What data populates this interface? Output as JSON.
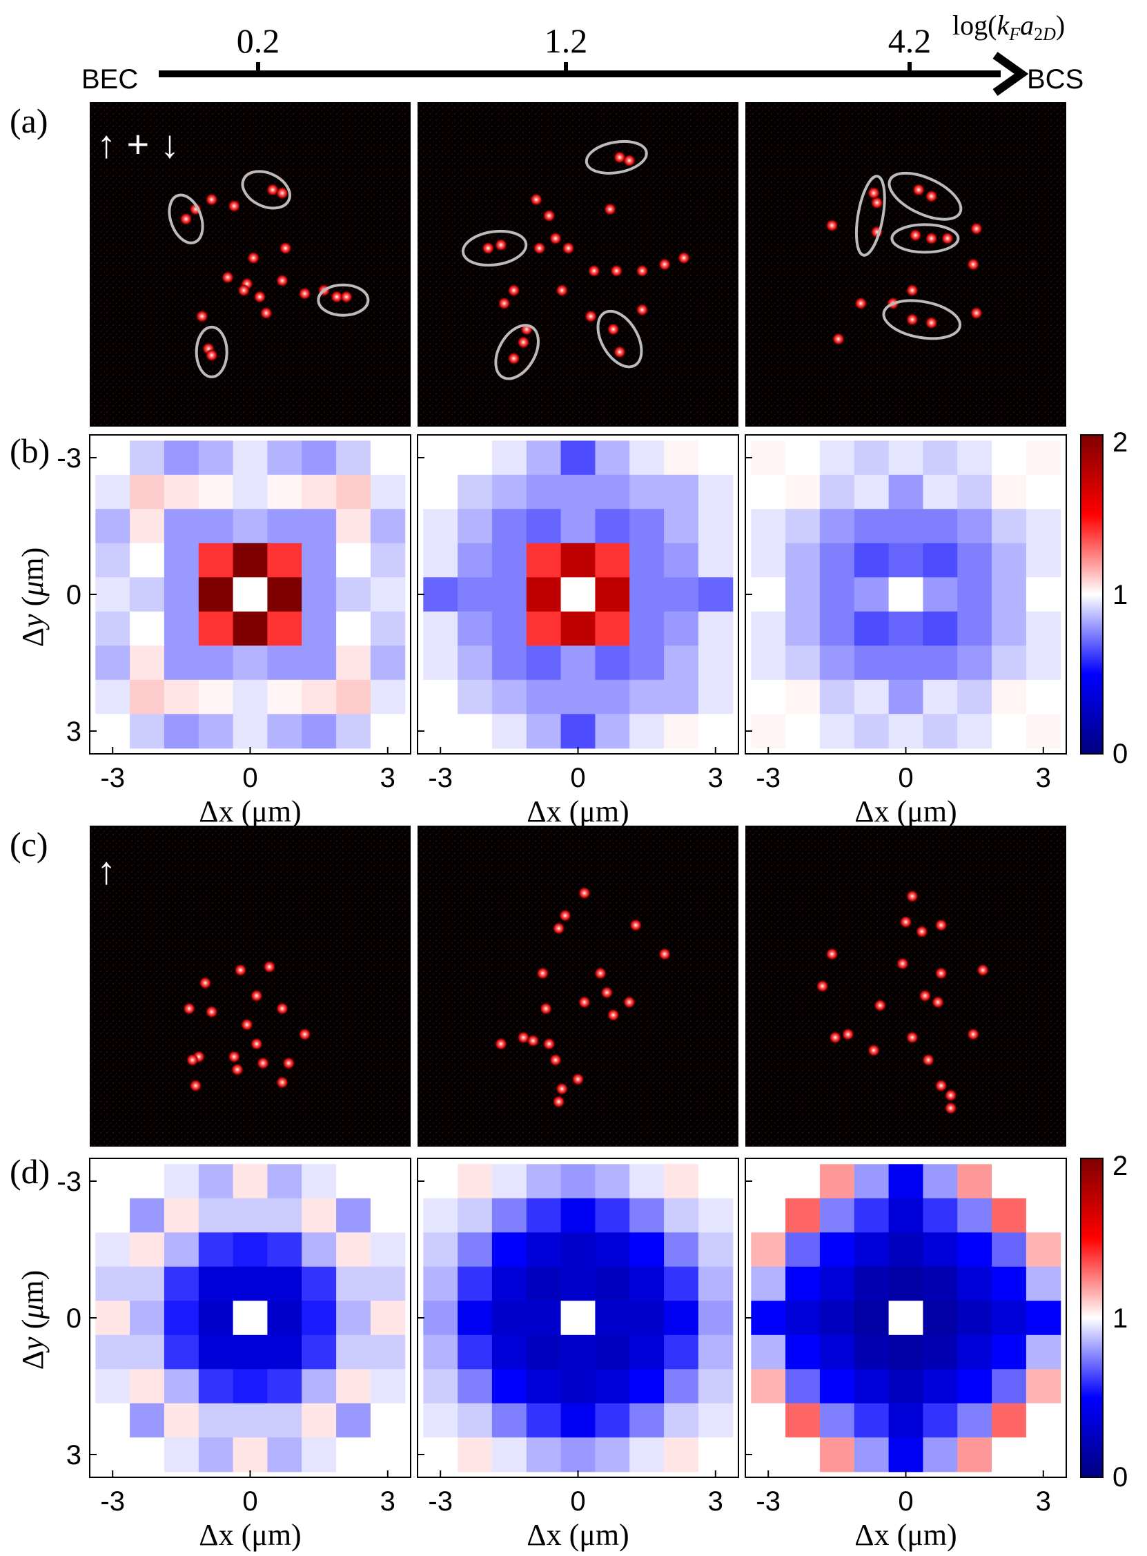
{
  "axis_top": {
    "left_label": "BEC",
    "right_label": "BCS",
    "ticks": [
      "0.2",
      "1.2",
      "4.2"
    ],
    "quantity_label": "log(kFa2D)"
  },
  "panels": {
    "a": {
      "label": "(a)",
      "symbol": "↑ + ↓"
    },
    "b": {
      "label": "(b)"
    },
    "c": {
      "label": "(c)",
      "symbol": "↑"
    },
    "d": {
      "label": "(d)"
    }
  },
  "axes_text": {
    "xlabel": "Δx (μm)",
    "ylabel": "Δy (μm)",
    "tick_neg": "-3",
    "tick_zero": "0",
    "tick_pos": "3"
  },
  "colorbar": {
    "max_label": "2",
    "mid_label": "1",
    "min_label": "0",
    "range": [
      0,
      2
    ]
  },
  "colors": {
    "low": "#00007f",
    "mid": "#ffffff",
    "high": "#7f0000",
    "image_bg": "#000000",
    "spot": "#ff2020",
    "ellipse": "#bbbbbb"
  },
  "chart_data": [
    {
      "type": "heatmap",
      "panel": "b",
      "column": 1,
      "x": [
        -3,
        -2.25,
        -1.5,
        -0.75,
        0,
        0.75,
        1.5,
        2.25,
        3
      ],
      "y": [
        3,
        2.25,
        1.5,
        0.75,
        0,
        -0.75,
        -1.5,
        -2.25,
        -3
      ],
      "zlim": [
        0,
        2
      ],
      "values": [
        [
          1.0,
          0.9,
          0.8,
          0.85,
          0.95,
          0.85,
          0.8,
          0.9,
          1.0
        ],
        [
          0.95,
          1.1,
          1.05,
          1.02,
          0.95,
          1.02,
          1.05,
          1.1,
          0.95
        ],
        [
          0.85,
          1.05,
          0.8,
          0.8,
          0.85,
          0.8,
          0.8,
          1.05,
          0.85
        ],
        [
          0.9,
          1.0,
          0.8,
          1.4,
          2.0,
          1.4,
          0.8,
          1.0,
          0.9
        ],
        [
          0.95,
          0.9,
          0.8,
          2.0,
          1.0,
          2.0,
          0.8,
          0.9,
          0.95
        ],
        [
          0.9,
          1.0,
          0.8,
          1.4,
          2.0,
          1.4,
          0.8,
          1.0,
          0.9
        ],
        [
          0.85,
          1.05,
          0.8,
          0.8,
          0.85,
          0.8,
          0.8,
          1.05,
          0.85
        ],
        [
          0.95,
          1.1,
          1.05,
          1.02,
          0.95,
          1.02,
          1.05,
          1.1,
          0.95
        ],
        [
          1.0,
          0.9,
          0.8,
          0.85,
          0.95,
          0.85,
          0.8,
          0.9,
          1.0
        ]
      ]
    },
    {
      "type": "heatmap",
      "panel": "b",
      "column": 2,
      "x": [
        -3,
        -2.25,
        -1.5,
        -0.75,
        0,
        0.75,
        1.5,
        2.25,
        3
      ],
      "y": [
        3,
        2.25,
        1.5,
        0.75,
        0,
        -0.75,
        -1.5,
        -2.25,
        -3
      ],
      "zlim": [
        0,
        2
      ],
      "values": [
        [
          1.0,
          1.0,
          0.95,
          0.85,
          0.65,
          0.85,
          0.95,
          1.02,
          1.0
        ],
        [
          1.0,
          0.9,
          0.85,
          0.8,
          0.8,
          0.8,
          0.85,
          0.85,
          0.95
        ],
        [
          0.95,
          0.85,
          0.75,
          0.7,
          0.8,
          0.7,
          0.75,
          0.85,
          0.95
        ],
        [
          0.95,
          0.8,
          0.75,
          1.4,
          1.75,
          1.4,
          0.75,
          0.8,
          0.95
        ],
        [
          0.7,
          0.75,
          0.75,
          1.75,
          1.0,
          1.75,
          0.75,
          0.75,
          0.7
        ],
        [
          0.95,
          0.8,
          0.75,
          1.4,
          1.75,
          1.4,
          0.75,
          0.8,
          0.95
        ],
        [
          0.95,
          0.85,
          0.75,
          0.7,
          0.8,
          0.7,
          0.75,
          0.85,
          0.95
        ],
        [
          1.0,
          0.9,
          0.85,
          0.8,
          0.8,
          0.8,
          0.85,
          0.85,
          0.95
        ],
        [
          1.0,
          1.0,
          0.95,
          0.85,
          0.65,
          0.85,
          0.95,
          1.02,
          1.0
        ]
      ]
    },
    {
      "type": "heatmap",
      "panel": "b",
      "column": 3,
      "x": [
        -3,
        -2.25,
        -1.5,
        -0.75,
        0,
        0.75,
        1.5,
        2.25,
        3
      ],
      "y": [
        3,
        2.25,
        1.5,
        0.75,
        0,
        -0.75,
        -1.5,
        -2.25,
        -3
      ],
      "zlim": [
        0,
        2
      ],
      "values": [
        [
          1.02,
          1.0,
          0.95,
          0.9,
          0.95,
          0.9,
          0.95,
          1.0,
          1.02
        ],
        [
          1.0,
          1.02,
          0.9,
          0.95,
          0.8,
          0.95,
          0.9,
          1.02,
          1.0
        ],
        [
          0.95,
          0.9,
          0.8,
          0.75,
          0.75,
          0.75,
          0.8,
          0.9,
          0.95
        ],
        [
          0.95,
          0.85,
          0.75,
          0.65,
          0.7,
          0.65,
          0.75,
          0.85,
          0.95
        ],
        [
          1.0,
          0.85,
          0.75,
          0.8,
          1.0,
          0.8,
          0.75,
          0.85,
          1.0
        ],
        [
          0.95,
          0.85,
          0.75,
          0.65,
          0.7,
          0.65,
          0.75,
          0.85,
          0.95
        ],
        [
          0.95,
          0.9,
          0.8,
          0.75,
          0.75,
          0.75,
          0.8,
          0.9,
          0.95
        ],
        [
          1.0,
          1.02,
          0.9,
          0.95,
          0.8,
          0.95,
          0.9,
          1.02,
          1.0
        ],
        [
          1.02,
          1.0,
          0.95,
          0.9,
          0.95,
          0.9,
          0.95,
          1.0,
          1.02
        ]
      ]
    },
    {
      "type": "heatmap",
      "panel": "d",
      "column": 1,
      "x": [
        -3,
        -2.25,
        -1.5,
        -0.75,
        0,
        0.75,
        1.5,
        2.25,
        3
      ],
      "y": [
        3,
        2.25,
        1.5,
        0.75,
        0,
        -0.75,
        -1.5,
        -2.25,
        -3
      ],
      "zlim": [
        0,
        2
      ],
      "values": [
        [
          1.0,
          1.0,
          0.95,
          0.85,
          1.05,
          0.85,
          0.95,
          1.0,
          1.0
        ],
        [
          1.0,
          0.8,
          1.05,
          0.9,
          0.9,
          0.9,
          1.05,
          0.8,
          1.0
        ],
        [
          0.95,
          1.05,
          0.85,
          0.6,
          0.55,
          0.6,
          0.85,
          1.05,
          0.95
        ],
        [
          0.9,
          0.9,
          0.6,
          0.35,
          0.35,
          0.35,
          0.6,
          0.9,
          0.9
        ],
        [
          1.05,
          0.85,
          0.55,
          0.3,
          1.0,
          0.3,
          0.55,
          0.85,
          1.05
        ],
        [
          0.9,
          0.9,
          0.6,
          0.35,
          0.35,
          0.35,
          0.6,
          0.9,
          0.9
        ],
        [
          0.95,
          1.05,
          0.85,
          0.6,
          0.55,
          0.6,
          0.85,
          1.05,
          0.95
        ],
        [
          1.0,
          0.8,
          1.05,
          0.9,
          0.9,
          0.9,
          1.05,
          0.8,
          1.0
        ],
        [
          1.0,
          1.0,
          0.95,
          0.85,
          1.05,
          0.85,
          0.95,
          1.0,
          1.0
        ]
      ]
    },
    {
      "type": "heatmap",
      "panel": "d",
      "column": 2,
      "x": [
        -3,
        -2.25,
        -1.5,
        -0.75,
        0,
        0.75,
        1.5,
        2.25,
        3
      ],
      "y": [
        3,
        2.25,
        1.5,
        0.75,
        0,
        -0.75,
        -1.5,
        -2.25,
        -3
      ],
      "zlim": [
        0,
        2
      ],
      "values": [
        [
          1.0,
          1.05,
          0.95,
          0.85,
          0.8,
          0.85,
          0.95,
          1.05,
          1.0
        ],
        [
          0.95,
          0.9,
          0.75,
          0.6,
          0.45,
          0.6,
          0.75,
          0.9,
          0.95
        ],
        [
          0.9,
          0.75,
          0.5,
          0.35,
          0.3,
          0.35,
          0.5,
          0.75,
          0.9
        ],
        [
          0.85,
          0.6,
          0.35,
          0.25,
          0.3,
          0.25,
          0.35,
          0.6,
          0.85
        ],
        [
          0.8,
          0.45,
          0.3,
          0.3,
          1.0,
          0.3,
          0.3,
          0.45,
          0.8
        ],
        [
          0.85,
          0.6,
          0.35,
          0.25,
          0.3,
          0.25,
          0.35,
          0.6,
          0.85
        ],
        [
          0.9,
          0.75,
          0.5,
          0.35,
          0.3,
          0.35,
          0.5,
          0.75,
          0.9
        ],
        [
          0.95,
          0.9,
          0.75,
          0.6,
          0.45,
          0.6,
          0.75,
          0.9,
          0.95
        ],
        [
          1.0,
          1.05,
          0.95,
          0.85,
          0.8,
          0.85,
          0.95,
          1.05,
          1.0
        ]
      ]
    },
    {
      "type": "heatmap",
      "panel": "d",
      "column": 3,
      "x": [
        -3,
        -2.25,
        -1.5,
        -0.75,
        0,
        0.75,
        1.5,
        2.25,
        3
      ],
      "y": [
        3,
        2.25,
        1.5,
        0.75,
        0,
        -0.75,
        -1.5,
        -2.25,
        -3
      ],
      "zlim": [
        0,
        2
      ],
      "values": [
        [
          1.0,
          1.0,
          1.2,
          0.8,
          0.45,
          0.8,
          1.2,
          1.0,
          1.0
        ],
        [
          1.0,
          1.3,
          0.75,
          0.6,
          0.35,
          0.6,
          0.75,
          1.3,
          1.0
        ],
        [
          1.15,
          0.7,
          0.5,
          0.35,
          0.25,
          0.35,
          0.5,
          0.7,
          1.15
        ],
        [
          0.85,
          0.5,
          0.35,
          0.2,
          0.15,
          0.2,
          0.35,
          0.5,
          0.85
        ],
        [
          0.5,
          0.35,
          0.25,
          0.15,
          1.0,
          0.15,
          0.25,
          0.35,
          0.5
        ],
        [
          0.85,
          0.5,
          0.35,
          0.2,
          0.15,
          0.2,
          0.35,
          0.5,
          0.85
        ],
        [
          1.15,
          0.7,
          0.5,
          0.35,
          0.25,
          0.35,
          0.5,
          0.7,
          1.15
        ],
        [
          1.0,
          1.3,
          0.75,
          0.6,
          0.35,
          0.6,
          0.75,
          1.3,
          1.0
        ],
        [
          1.0,
          1.0,
          1.2,
          0.8,
          0.45,
          0.8,
          1.2,
          1.0,
          1.0
        ]
      ]
    }
  ]
}
